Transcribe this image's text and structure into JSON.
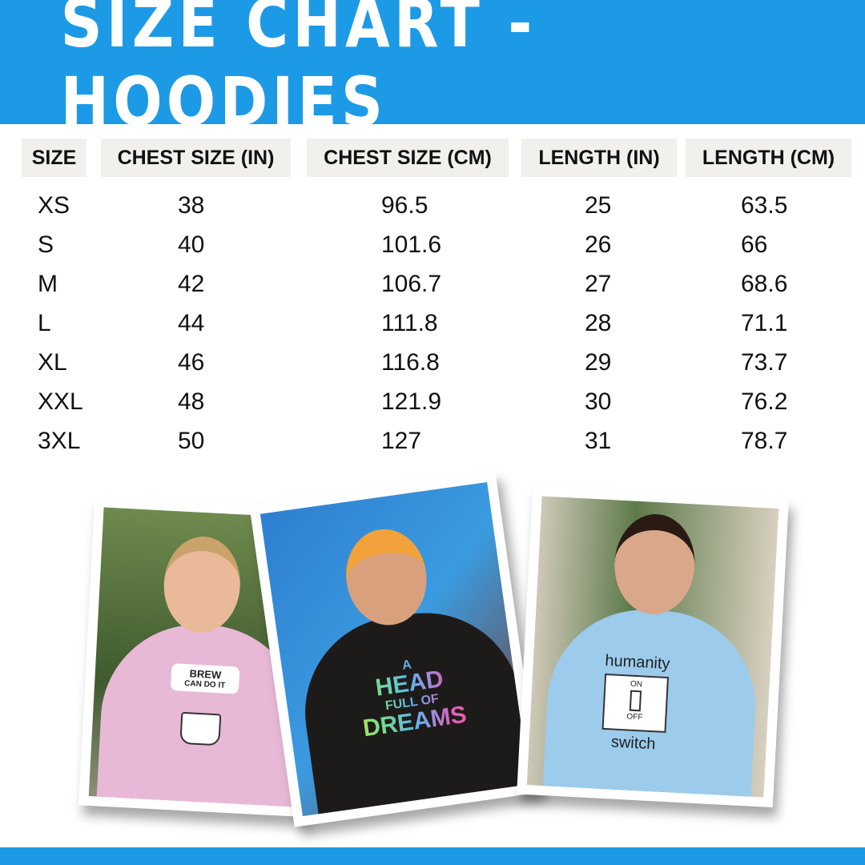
{
  "title": "SIZE CHART - HOODIES",
  "table": {
    "headers": [
      "SIZE",
      "CHEST SIZE (IN)",
      "CHEST SIZE (CM)",
      "LENGTH (IN)",
      "LENGTH (CM)"
    ],
    "rows": [
      [
        "XS",
        "38",
        "96.5",
        "25",
        "63.5"
      ],
      [
        "S",
        "40",
        "101.6",
        "26",
        "66"
      ],
      [
        "M",
        "42",
        "106.7",
        "27",
        "68.6"
      ],
      [
        "L",
        "44",
        "111.8",
        "28",
        "71.1"
      ],
      [
        "XL",
        "46",
        "116.8",
        "29",
        "73.7"
      ],
      [
        "XXL",
        "48",
        "121.9",
        "30",
        "76.2"
      ],
      [
        "3XL",
        "50",
        "127",
        "31",
        "78.7"
      ]
    ]
  },
  "photos": [
    {
      "print": [
        "BREW",
        "CAN DO IT"
      ],
      "hoodie_color": "#e8b9d6"
    },
    {
      "print": [
        "A",
        "HEAD",
        "FULL OF",
        "DREAMS"
      ],
      "hoodie_color": "#1d1b1a"
    },
    {
      "print": [
        "humanity",
        "ON",
        "OFF",
        "switch"
      ],
      "hoodie_color": "#9ccbec"
    }
  ],
  "colors": {
    "accent": "#1c9ae6",
    "header_bg": "#f1f0ec"
  }
}
